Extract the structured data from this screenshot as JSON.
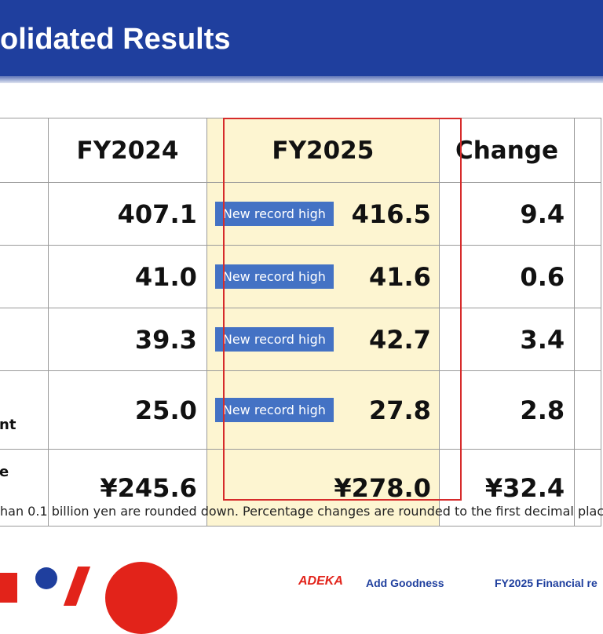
{
  "header": {
    "title": "olidated Results"
  },
  "table": {
    "columns": [
      "FY2024",
      "FY2025",
      "Change"
    ],
    "rows": [
      {
        "label": "",
        "fy2024": "407.1",
        "badge": "New record high",
        "fy2025": "416.5",
        "change": "9.4"
      },
      {
        "label": "",
        "fy2024": "41.0",
        "badge": "New record high",
        "fy2025": "41.6",
        "change": "0.6"
      },
      {
        "label": "",
        "fy2024": "39.3",
        "badge": "New record high",
        "fy2025": "42.7",
        "change": "3.4"
      },
      {
        "label": "nt",
        "fy2024": "25.0",
        "badge": "New record high",
        "fy2025": "27.8",
        "change": "2.8"
      },
      {
        "label": "e",
        "fy2024": "¥245.6",
        "badge": "",
        "fy2025": "¥278.0",
        "change": "¥32.4"
      }
    ]
  },
  "footnote": "han 0.1 billion yen are rounded down. Percentage changes are rounded to the first decimal plac",
  "footer": {
    "brand": "ADEKA",
    "tagline": "Add Goodness",
    "right": "FY2025 Financial re"
  },
  "colors": {
    "header_blue": "#1f3f9e",
    "highlight_fill": "#fdf5d1",
    "highlight_border": "#d62b2b",
    "badge_blue": "#4472c4",
    "brand_red": "#e2231a"
  }
}
